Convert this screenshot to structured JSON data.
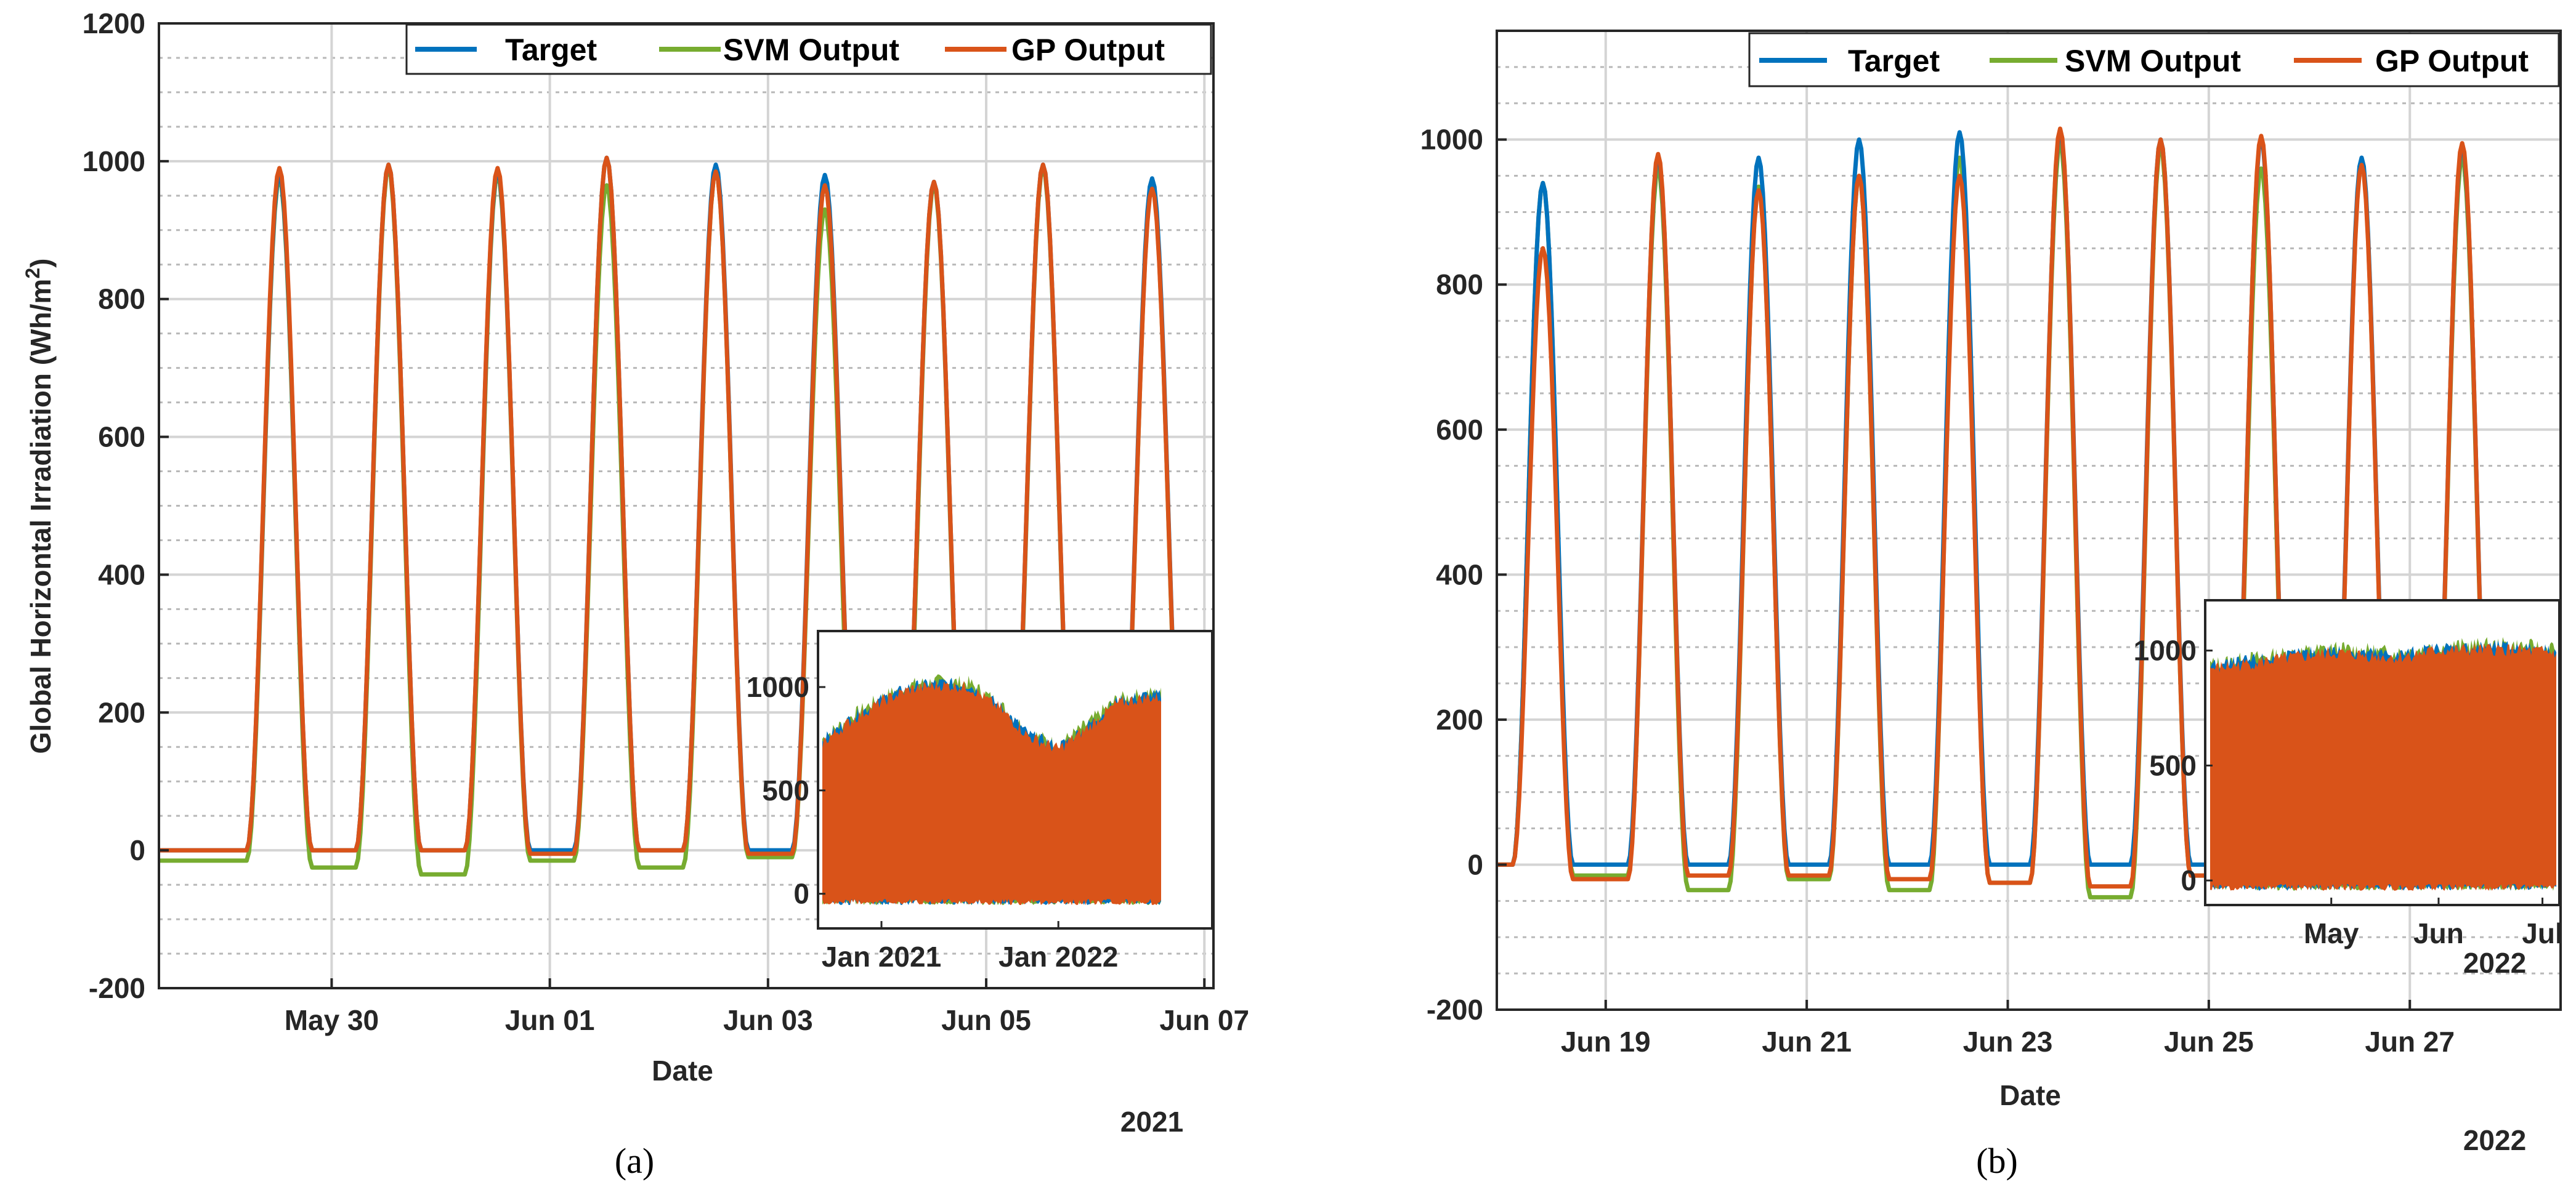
{
  "colors": {
    "target": "#0072BD",
    "svm": "#77AC30",
    "gp": "#D95319",
    "grid_major": "#d4d4d4",
    "grid_minor": "#b8b8b8",
    "axis": "#262626"
  },
  "chart_data": [
    {
      "panel_label": "(a)",
      "type": "line",
      "xlabel": "Date",
      "ylabel_main": "Global Horizontal Irradiation (Wh/m",
      "ylabel_sup": "2",
      "ylabel_tail": ")",
      "year_label": "2021",
      "x_unit": "days since 2021-05-29 00:00",
      "xlim": [
        "2021-05-28 10:00",
        "2021-06-07 02:00"
      ],
      "ylim": [
        -200,
        1200
      ],
      "yticks": [
        -200,
        0,
        200,
        400,
        600,
        800,
        1000,
        1200
      ],
      "xticks": [
        {
          "date": "2021-05-30",
          "label": "May 30"
        },
        {
          "date": "2021-06-01",
          "label": "Jun 01"
        },
        {
          "date": "2021-06-03",
          "label": "Jun 03"
        },
        {
          "date": "2021-06-05",
          "label": "Jun 05"
        },
        {
          "date": "2021-06-07",
          "label": "Jun 07"
        }
      ],
      "grid": true,
      "legend_position": "top-right",
      "series": [
        {
          "name": "Target",
          "color_key": "target",
          "daily_peaks": [
            980,
            995,
            985,
            1005,
            995,
            980,
            970,
            995,
            975
          ],
          "peak_dates": [
            "2021-05-29 12:30",
            "2021-05-30 12:30",
            "2021-05-31 12:30",
            "2021-06-01 12:30",
            "2021-06-02 12:30",
            "2021-06-03 12:30",
            "2021-06-04 12:30",
            "2021-06-05 12:30",
            "2021-06-06 12:30"
          ],
          "night_values": [
            0,
            0,
            0,
            0,
            0,
            0,
            0,
            0,
            0,
            0
          ]
        },
        {
          "name": "SVM Output",
          "color_key": "svm",
          "daily_peaks": [
            975,
            990,
            980,
            965,
            985,
            930,
            965,
            990,
            965
          ],
          "peak_dates": [
            "2021-05-29 12:30",
            "2021-05-30 12:30",
            "2021-05-31 12:30",
            "2021-06-01 12:30",
            "2021-06-02 12:30",
            "2021-06-03 12:30",
            "2021-06-04 12:30",
            "2021-06-05 12:30",
            "2021-06-06 12:30"
          ],
          "night_values": [
            -15,
            -25,
            -35,
            -15,
            -25,
            -10,
            -35,
            -15,
            -10,
            -10
          ]
        },
        {
          "name": "GP Output",
          "color_key": "gp",
          "daily_peaks": [
            990,
            995,
            990,
            1005,
            985,
            965,
            970,
            995,
            960
          ],
          "peak_dates": [
            "2021-05-29 12:30",
            "2021-05-30 12:30",
            "2021-05-31 12:30",
            "2021-06-01 12:30",
            "2021-06-02 12:30",
            "2021-06-03 12:30",
            "2021-06-04 12:30",
            "2021-06-05 12:30",
            "2021-06-06 12:30"
          ],
          "night_values": [
            0,
            0,
            0,
            -5,
            0,
            -5,
            0,
            0,
            0,
            0
          ]
        }
      ],
      "inset": {
        "type": "area",
        "ylim": [
          -120,
          1250
        ],
        "yticks": [
          0,
          500,
          1000
        ],
        "xlim": [
          "2020-09-01",
          "2022-08-01"
        ],
        "xticks": [
          {
            "date": "2021-01-01",
            "label": "Jan 2021"
          },
          {
            "date": "2022-01-01",
            "label": "Jan 2022"
          }
        ],
        "envelope": [
          {
            "date": "2020-09-01",
            "value": 730
          },
          {
            "date": "2020-11-01",
            "value": 840
          },
          {
            "date": "2021-01-01",
            "value": 930
          },
          {
            "date": "2021-03-01",
            "value": 990
          },
          {
            "date": "2021-05-01",
            "value": 1010
          },
          {
            "date": "2021-07-01",
            "value": 1000
          },
          {
            "date": "2021-09-01",
            "value": 900
          },
          {
            "date": "2021-11-01",
            "value": 760
          },
          {
            "date": "2022-01-01",
            "value": 700
          },
          {
            "date": "2022-03-01",
            "value": 800
          },
          {
            "date": "2022-05-01",
            "value": 920
          },
          {
            "date": "2022-07-01",
            "value": 950
          }
        ],
        "floor_value": -40
      }
    },
    {
      "panel_label": "(b)",
      "type": "line",
      "xlabel": "Date",
      "year_label": "2022",
      "x_unit": "days since 2022-06-18 00:00",
      "xlim": [
        "2022-06-17 22:00",
        "2022-06-28 12:00"
      ],
      "ylim": [
        -200,
        1150
      ],
      "yticks": [
        -200,
        0,
        200,
        400,
        600,
        800,
        1000
      ],
      "xticks": [
        {
          "date": "2022-06-19",
          "label": "Jun 19"
        },
        {
          "date": "2022-06-21",
          "label": "Jun 21"
        },
        {
          "date": "2022-06-23",
          "label": "Jun 23"
        },
        {
          "date": "2022-06-25",
          "label": "Jun 25"
        },
        {
          "date": "2022-06-27",
          "label": "Jun 27"
        }
      ],
      "grid": true,
      "legend_position": "top-right",
      "series": [
        {
          "name": "Target",
          "color_key": "target",
          "daily_peaks": [
            940,
            975,
            975,
            1000,
            1010,
            1010,
            1000,
            1000,
            975,
            990
          ],
          "peak_dates": [
            "2022-06-18 09:00",
            "2022-06-19 12:30",
            "2022-06-20 12:30",
            "2022-06-21 12:30",
            "2022-06-22 12:30",
            "2022-06-23 12:30",
            "2022-06-24 12:30",
            "2022-06-25 12:30",
            "2022-06-26 12:30",
            "2022-06-27 12:30"
          ],
          "night_values": [
            0,
            0,
            0,
            0,
            0,
            0,
            0,
            0,
            0,
            0,
            0
          ]
        },
        {
          "name": "SVM Output",
          "color_key": "svm",
          "daily_peaks": [
            940,
            960,
            935,
            950,
            975,
            995,
            990,
            960,
            970,
            975
          ],
          "peak_dates": [
            "2022-06-18 09:00",
            "2022-06-19 12:30",
            "2022-06-20 12:30",
            "2022-06-21 12:30",
            "2022-06-22 12:30",
            "2022-06-23 12:30",
            "2022-06-24 12:30",
            "2022-06-25 12:30",
            "2022-06-26 12:30",
            "2022-06-27 12:30"
          ],
          "night_values": [
            0,
            -15,
            -35,
            -20,
            -35,
            -25,
            -45,
            -15,
            -10,
            -10,
            -10
          ]
        },
        {
          "name": "GP Output",
          "color_key": "gp",
          "daily_peaks": [
            850,
            980,
            930,
            950,
            950,
            1015,
            1000,
            1005,
            965,
            995
          ],
          "peak_dates": [
            "2022-06-18 09:00",
            "2022-06-19 12:30",
            "2022-06-20 12:30",
            "2022-06-21 12:30",
            "2022-06-22 12:30",
            "2022-06-23 12:30",
            "2022-06-24 12:30",
            "2022-06-25 12:30",
            "2022-06-26 12:30",
            "2022-06-27 12:30"
          ],
          "night_values": [
            0,
            -20,
            -15,
            -15,
            -20,
            -25,
            -30,
            -15,
            -10,
            -10,
            -10
          ]
        }
      ],
      "inset": {
        "type": "area",
        "ylim": [
          -80,
          1200
        ],
        "yticks": [
          0,
          500,
          1000
        ],
        "year_label": "2022",
        "xlim": [
          "2022-03-27",
          "2022-07-05"
        ],
        "xticks": [
          {
            "date": "2022-05-01",
            "label": "May"
          },
          {
            "date": "2022-06-01",
            "label": "Jun"
          },
          {
            "date": "2022-07-01",
            "label": "Jul"
          }
        ],
        "envelope": [
          {
            "date": "2022-03-27",
            "value": 920
          },
          {
            "date": "2022-04-15",
            "value": 960
          },
          {
            "date": "2022-05-01",
            "value": 990
          },
          {
            "date": "2022-05-20",
            "value": 970
          },
          {
            "date": "2022-06-01",
            "value": 1000
          },
          {
            "date": "2022-06-20",
            "value": 1005
          },
          {
            "date": "2022-07-05",
            "value": 990
          }
        ],
        "floor_value": -30
      }
    }
  ]
}
